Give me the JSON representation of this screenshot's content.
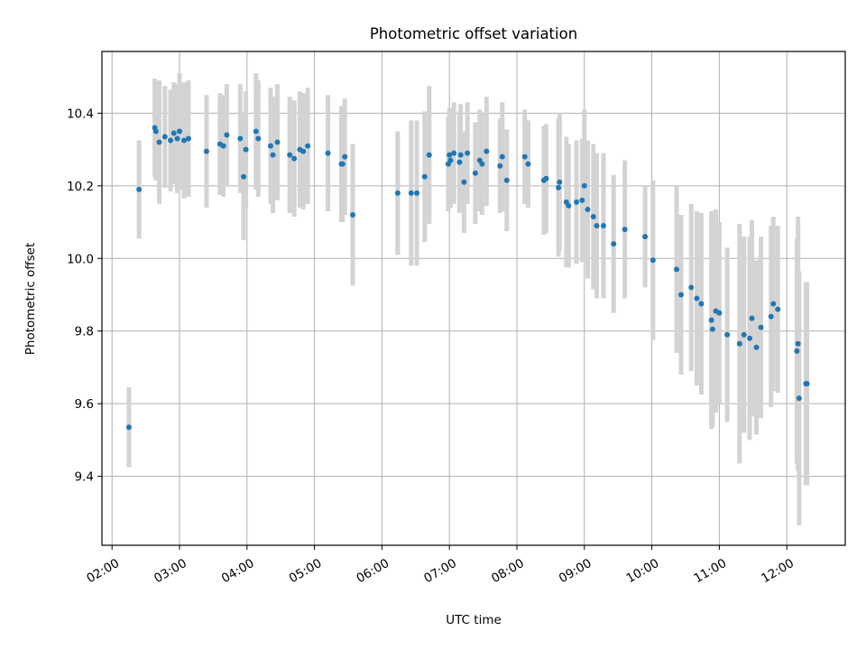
{
  "chart_data": {
    "type": "scatter",
    "title": "Photometric offset variation",
    "xlabel": "UTC time",
    "ylabel": "Photometric offset",
    "x_tick_labels": [
      "02:00",
      "03:00",
      "04:00",
      "05:00",
      "06:00",
      "07:00",
      "08:00",
      "09:00",
      "10:00",
      "11:00",
      "12:00"
    ],
    "y_tick_labels": [
      "9.4",
      "9.6",
      "9.8",
      "10.0",
      "10.2",
      "10.4"
    ],
    "y_tick_values": [
      9.4,
      9.6,
      9.8,
      10.0,
      10.2,
      10.4
    ],
    "xlim": [
      "01:51",
      "12:52"
    ],
    "ylim": [
      9.21,
      10.57
    ],
    "grid": true,
    "colors": {
      "points": "#1f77b4",
      "error_bars": "#d3d3d3",
      "grid": "#b0b0b0"
    },
    "series": [
      {
        "x": [
          "02:15",
          "02:24",
          "02:38",
          "02:39",
          "02:42",
          "02:47",
          "02:52",
          "02:55",
          "02:58",
          "03:00",
          "03:04",
          "03:08",
          "03:24",
          "03:36",
          "03:39",
          "03:42",
          "03:54",
          "03:57",
          "03:59",
          "04:08",
          "04:10",
          "04:21",
          "04:23",
          "04:27",
          "04:38",
          "04:42",
          "04:47",
          "04:50",
          "04:54",
          "05:12",
          "05:24",
          "05:25",
          "05:27",
          "05:34",
          "06:14",
          "06:26",
          "06:31",
          "06:38",
          "06:42",
          "06:59",
          "07:00",
          "07:01",
          "07:04",
          "07:09",
          "07:10",
          "07:13",
          "07:16",
          "07:23",
          "07:27",
          "07:29",
          "07:33",
          "07:45",
          "07:47",
          "07:51",
          "08:07",
          "08:10",
          "08:24",
          "08:26",
          "08:37",
          "08:38",
          "08:44",
          "08:46",
          "08:53",
          "08:58",
          "09:00",
          "09:03",
          "09:08",
          "09:11",
          "09:17",
          "09:26",
          "09:36",
          "09:54",
          "10:01",
          "10:22",
          "10:26",
          "10:35",
          "10:40",
          "10:44",
          "10:53",
          "10:54",
          "10:57",
          "11:00",
          "11:07",
          "11:18",
          "11:22",
          "11:27",
          "11:29",
          "11:33",
          "11:37",
          "11:46",
          "11:48",
          "11:52",
          "12:09",
          "12:10",
          "12:11",
          "12:17",
          "12:18"
        ],
        "y": [
          9.535,
          10.19,
          10.36,
          10.35,
          10.32,
          10.335,
          10.325,
          10.345,
          10.33,
          10.35,
          10.325,
          10.33,
          10.295,
          10.315,
          10.31,
          10.34,
          10.33,
          10.225,
          10.3,
          10.35,
          10.33,
          10.31,
          10.285,
          10.32,
          10.285,
          10.275,
          10.3,
          10.295,
          10.31,
          10.29,
          10.26,
          10.26,
          10.28,
          10.12,
          10.18,
          10.18,
          10.18,
          10.225,
          10.285,
          10.26,
          10.285,
          10.27,
          10.29,
          10.265,
          10.285,
          10.21,
          10.29,
          10.235,
          10.27,
          10.26,
          10.295,
          10.255,
          10.28,
          10.215,
          10.28,
          10.26,
          10.215,
          10.22,
          10.195,
          10.21,
          10.155,
          10.145,
          10.155,
          10.16,
          10.2,
          10.135,
          10.115,
          10.09,
          10.09,
          10.04,
          10.08,
          10.06,
          9.995,
          9.97,
          9.9,
          9.92,
          9.89,
          9.875,
          9.83,
          9.805,
          9.855,
          9.85,
          9.79,
          9.765,
          9.79,
          9.78,
          9.835,
          9.755,
          9.81,
          9.84,
          9.875,
          9.86,
          9.745,
          9.765,
          9.615,
          9.655,
          9.655
        ],
        "yerr": [
          0.11,
          0.135,
          0.135,
          0.135,
          0.17,
          0.14,
          0.14,
          0.14,
          0.15,
          0.16,
          0.16,
          0.16,
          0.155,
          0.14,
          0.14,
          0.14,
          0.15,
          0.175,
          0.16,
          0.16,
          0.16,
          0.16,
          0.16,
          0.16,
          0.16,
          0.16,
          0.16,
          0.16,
          0.16,
          0.16,
          0.16,
          0.16,
          0.16,
          0.195,
          0.17,
          0.2,
          0.2,
          0.18,
          0.19,
          0.13,
          0.13,
          0.13,
          0.14,
          0.14,
          0.14,
          0.14,
          0.14,
          0.14,
          0.14,
          0.14,
          0.15,
          0.13,
          0.15,
          0.14,
          0.13,
          0.12,
          0.15,
          0.15,
          0.19,
          0.19,
          0.18,
          0.17,
          0.17,
          0.17,
          0.21,
          0.19,
          0.2,
          0.2,
          0.2,
          0.19,
          0.19,
          0.14,
          0.22,
          0.23,
          0.22,
          0.23,
          0.24,
          0.25,
          0.3,
          0.27,
          0.28,
          0.25,
          0.24,
          0.33,
          0.27,
          0.28,
          0.27,
          0.24,
          0.25,
          0.25,
          0.24,
          0.23,
          0.31,
          0.35,
          0.35,
          0.28,
          0.28
        ]
      }
    ]
  }
}
